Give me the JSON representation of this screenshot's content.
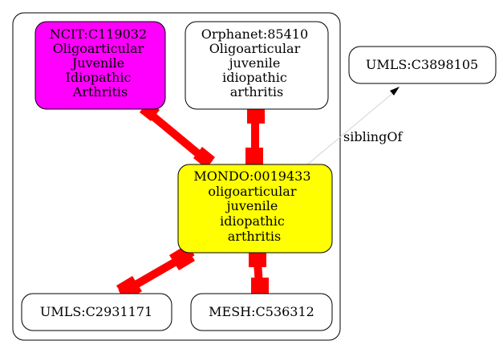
{
  "colors": {
    "ncit_fill": "#ff00ff",
    "mondo_fill": "#ffff00",
    "plain_fill": "#ffffff",
    "edge_red": "#ff0000",
    "sibling_edge": "#d3d3d3"
  },
  "nodes": {
    "ncit": [
      "NCIT:C119032",
      "Oligoarticular",
      "Juvenile",
      "Idiopathic",
      "Arthritis"
    ],
    "orphanet": [
      "Orphanet:85410",
      "Oligoarticular",
      "juvenile",
      "idiopathic",
      "arthritis"
    ],
    "mondo": [
      "MONDO:0019433",
      "oligoarticular",
      "juvenile",
      "idiopathic",
      "arthritis"
    ],
    "umls_c3898105": [
      "UMLS:C3898105"
    ],
    "umls_c2931171": [
      "UMLS:C2931171"
    ],
    "mesh_c536312": [
      "MESH:C536312"
    ]
  },
  "edges": {
    "sibling_label": "siblingOf"
  }
}
